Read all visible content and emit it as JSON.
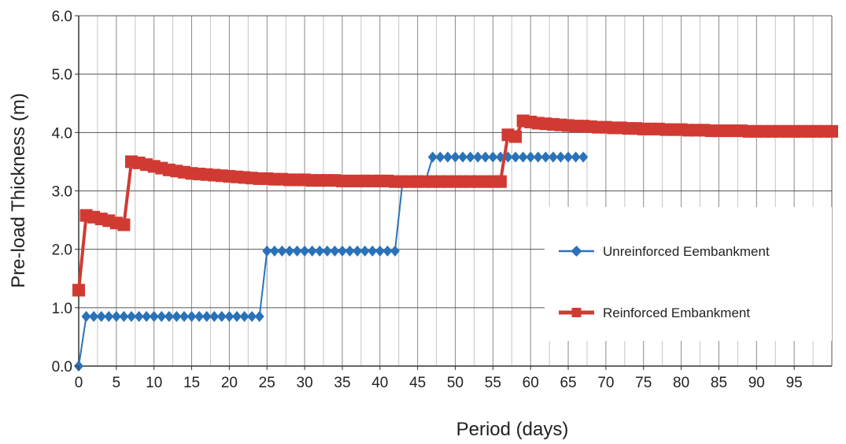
{
  "chart_data": {
    "type": "line",
    "title": "",
    "xlabel": "Period (days)",
    "ylabel": "Pre-load  Thickness (m)",
    "xlim": [
      0,
      100
    ],
    "ylim": [
      0,
      6
    ],
    "x_ticks": [
      0,
      5,
      10,
      15,
      20,
      25,
      30,
      35,
      40,
      45,
      50,
      55,
      60,
      65,
      70,
      75,
      80,
      85,
      90,
      95
    ],
    "x_tick_labels": [
      "0",
      "5",
      "10",
      "15",
      "20",
      "25",
      "30",
      "35",
      "40",
      "45",
      "50",
      "55",
      "60",
      "65",
      "70",
      "75",
      "80",
      "85",
      "90",
      "95"
    ],
    "y_ticks": [
      0,
      1,
      2,
      3,
      4,
      5,
      6
    ],
    "y_tick_labels": [
      "0.0",
      "1.0",
      "2.0",
      "3.0",
      "4.0",
      "5.0",
      "6.0"
    ],
    "grid": true,
    "legend_position": "right",
    "series": [
      {
        "name": "Unreinforced Eembankment",
        "color": "#2a72b8",
        "marker": "diamond",
        "x": [
          0,
          1,
          2,
          3,
          4,
          5,
          6,
          7,
          8,
          9,
          10,
          11,
          12,
          13,
          14,
          15,
          16,
          17,
          18,
          19,
          20,
          21,
          22,
          23,
          24,
          25,
          26,
          27,
          28,
          29,
          30,
          31,
          32,
          33,
          34,
          35,
          36,
          37,
          38,
          39,
          40,
          41,
          42,
          43,
          44,
          45,
          46,
          47,
          48,
          49,
          50,
          51,
          52,
          53,
          54,
          55,
          56,
          57,
          58,
          59,
          60,
          61,
          62,
          63,
          64,
          65,
          66,
          67
        ],
        "y": [
          0.0,
          0.85,
          0.85,
          0.85,
          0.85,
          0.85,
          0.85,
          0.85,
          0.85,
          0.85,
          0.85,
          0.85,
          0.85,
          0.85,
          0.85,
          0.85,
          0.85,
          0.85,
          0.85,
          0.85,
          0.85,
          0.85,
          0.85,
          0.85,
          0.85,
          1.97,
          1.97,
          1.97,
          1.97,
          1.97,
          1.97,
          1.97,
          1.97,
          1.97,
          1.97,
          1.97,
          1.97,
          1.97,
          1.97,
          1.97,
          1.97,
          1.97,
          1.97,
          3.15,
          3.15,
          3.15,
          3.15,
          3.58,
          3.58,
          3.58,
          3.58,
          3.58,
          3.58,
          3.58,
          3.58,
          3.58,
          3.58,
          3.58,
          3.58,
          3.58,
          3.58,
          3.58,
          3.58,
          3.58,
          3.58,
          3.58,
          3.58,
          3.58
        ]
      },
      {
        "name": "Reinforced Embankment",
        "color": "#d13a32",
        "marker": "square",
        "x": [
          0,
          1,
          2,
          3,
          4,
          5,
          6,
          7,
          8,
          9,
          10,
          11,
          12,
          13,
          14,
          15,
          16,
          17,
          18,
          19,
          20,
          21,
          22,
          23,
          24,
          25,
          26,
          27,
          28,
          29,
          30,
          31,
          32,
          33,
          34,
          35,
          36,
          37,
          38,
          39,
          40,
          41,
          42,
          43,
          44,
          45,
          46,
          47,
          48,
          49,
          50,
          51,
          52,
          53,
          54,
          55,
          56,
          57,
          58,
          59,
          60,
          61,
          62,
          63,
          64,
          65,
          66,
          67,
          68,
          69,
          70,
          71,
          72,
          73,
          74,
          75,
          76,
          77,
          78,
          79,
          80,
          81,
          82,
          83,
          84,
          85,
          86,
          87,
          88,
          89,
          90,
          91,
          92,
          93,
          94,
          95,
          96,
          97,
          98,
          99,
          100
        ],
        "y": [
          1.3,
          2.58,
          2.55,
          2.52,
          2.49,
          2.45,
          2.42,
          3.5,
          3.48,
          3.45,
          3.42,
          3.39,
          3.36,
          3.34,
          3.32,
          3.3,
          3.29,
          3.28,
          3.27,
          3.26,
          3.25,
          3.24,
          3.23,
          3.22,
          3.21,
          3.21,
          3.2,
          3.2,
          3.19,
          3.19,
          3.19,
          3.18,
          3.18,
          3.18,
          3.18,
          3.17,
          3.17,
          3.17,
          3.17,
          3.17,
          3.17,
          3.17,
          3.16,
          3.16,
          3.16,
          3.16,
          3.16,
          3.16,
          3.16,
          3.16,
          3.16,
          3.16,
          3.16,
          3.16,
          3.16,
          3.16,
          3.16,
          3.96,
          3.93,
          4.2,
          4.18,
          4.16,
          4.15,
          4.14,
          4.13,
          4.12,
          4.11,
          4.11,
          4.1,
          4.09,
          4.09,
          4.08,
          4.08,
          4.07,
          4.07,
          4.06,
          4.06,
          4.06,
          4.05,
          4.05,
          4.05,
          4.04,
          4.04,
          4.04,
          4.03,
          4.03,
          4.03,
          4.03,
          4.03,
          4.02,
          4.02,
          4.02,
          4.02,
          4.02,
          4.02,
          4.02,
          4.02,
          4.02,
          4.02,
          4.02,
          4.02
        ]
      }
    ]
  }
}
